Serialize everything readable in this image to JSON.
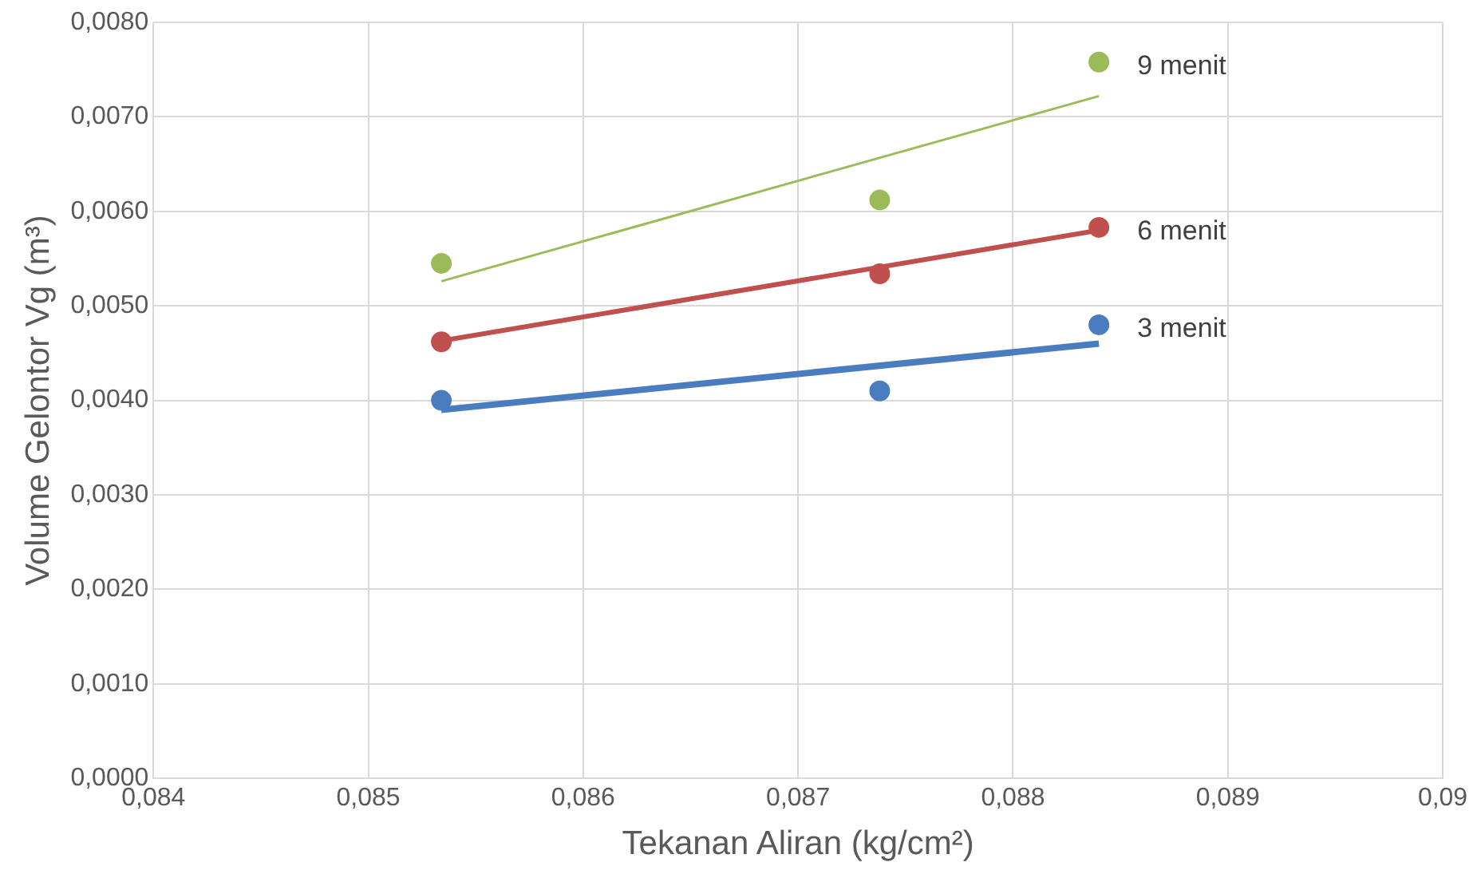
{
  "chart_data": {
    "type": "scatter",
    "xlabel": "Tekanan Aliran (kg/cm²)",
    "ylabel": "Volume Gelontor Vg (m³)",
    "xlim": [
      0.084,
      0.09
    ],
    "xticks": [
      {
        "value": 0.084,
        "label": "0,084"
      },
      {
        "value": 0.085,
        "label": "0,085"
      },
      {
        "value": 0.086,
        "label": "0,086"
      },
      {
        "value": 0.087,
        "label": "0,087"
      },
      {
        "value": 0.088,
        "label": "0,088"
      },
      {
        "value": 0.089,
        "label": "0,089"
      },
      {
        "value": 0.09,
        "label": "0,09"
      }
    ],
    "ylim": [
      0,
      0.008
    ],
    "yticks": [
      {
        "value": 0,
        "label": "0,0000"
      },
      {
        "value": 0.001,
        "label": "0,0010"
      },
      {
        "value": 0.002,
        "label": "0,0020"
      },
      {
        "value": 0.003,
        "label": "0,0030"
      },
      {
        "value": 0.004,
        "label": "0,0040"
      },
      {
        "value": 0.005,
        "label": "0,0050"
      },
      {
        "value": 0.006,
        "label": "0,0060"
      },
      {
        "value": 0.007,
        "label": "0,0070"
      },
      {
        "value": 0.008,
        "label": "0,0080"
      }
    ],
    "grid": true,
    "legend": false,
    "marker": "circle",
    "series": [
      {
        "name": "3 menit",
        "color": "#4a7dbf",
        "x": [
          0.08534,
          0.08738,
          0.0884
        ],
        "values": [
          0.004,
          0.0041,
          0.0048
        ]
      },
      {
        "name": "6 menit",
        "color": "#c0504d",
        "x": [
          0.08534,
          0.08738,
          0.0884
        ],
        "values": [
          0.00462,
          0.00534,
          0.00583
        ]
      },
      {
        "name": "9 menit",
        "color": "#9bbb59",
        "x": [
          0.08534,
          0.08738,
          0.0884
        ],
        "values": [
          0.00545,
          0.00612,
          0.00758
        ]
      },
      {
        "type": "line",
        "marker": "none",
        "color": "#4a7dbf",
        "x": [
          0.08534,
          0.0884
        ],
        "values": [
          0.0039,
          0.0046
        ]
      },
      {
        "type": "line",
        "marker": "none",
        "color": "#c0504d",
        "x": [
          0.08534,
          0.0884
        ],
        "values": [
          0.00463,
          0.0058
        ]
      },
      {
        "type": "line",
        "marker": "none",
        "color": "#9bbb59",
        "x": [
          0.08534,
          0.0884
        ],
        "values": [
          0.00526,
          0.00722
        ]
      }
    ]
  }
}
